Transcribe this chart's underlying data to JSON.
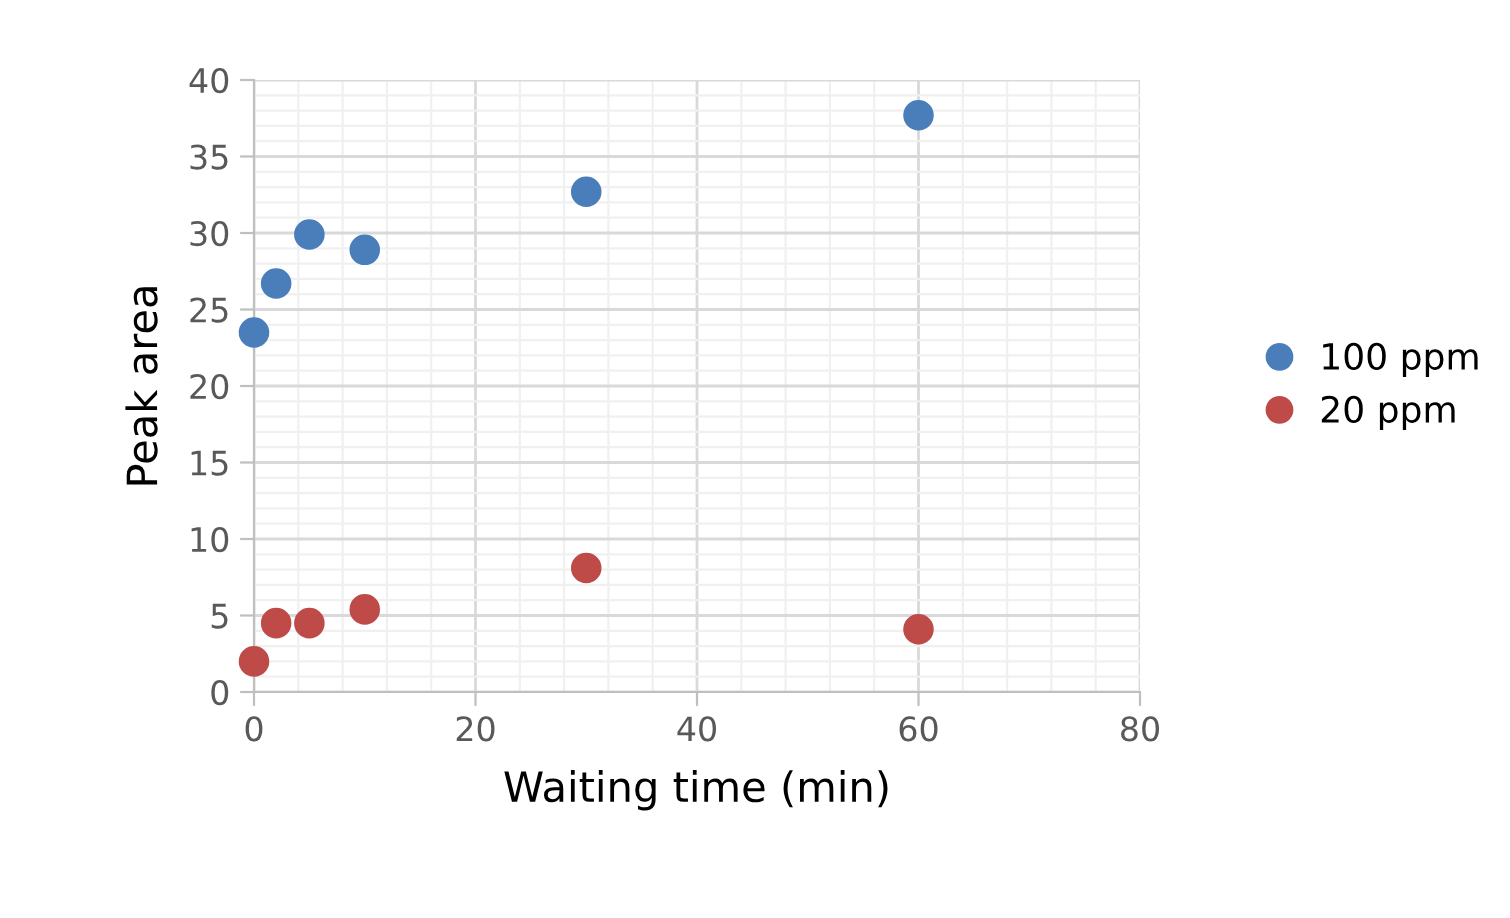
{
  "chart_data": {
    "type": "scatter",
    "xlabel": "Waiting time (min)",
    "ylabel": "Peak area",
    "x": [
      0,
      2,
      5,
      10,
      30,
      60
    ],
    "series": [
      {
        "name": "100 ppm",
        "color": "#4a7ebb",
        "values": [
          23.5,
          26.7,
          29.9,
          28.9,
          32.7,
          37.7
        ]
      },
      {
        "name": "20 ppm",
        "color": "#be4b48",
        "values": [
          2.0,
          4.5,
          4.5,
          5.4,
          8.1,
          4.1
        ]
      }
    ],
    "xlim": [
      0,
      80
    ],
    "xticks": [
      0,
      20,
      40,
      60,
      80
    ],
    "ylim": [
      0,
      40
    ],
    "yticks": [
      0,
      5,
      10,
      15,
      20,
      25,
      30,
      35,
      40
    ],
    "grid": true,
    "legend": "right",
    "marker": "circle"
  }
}
